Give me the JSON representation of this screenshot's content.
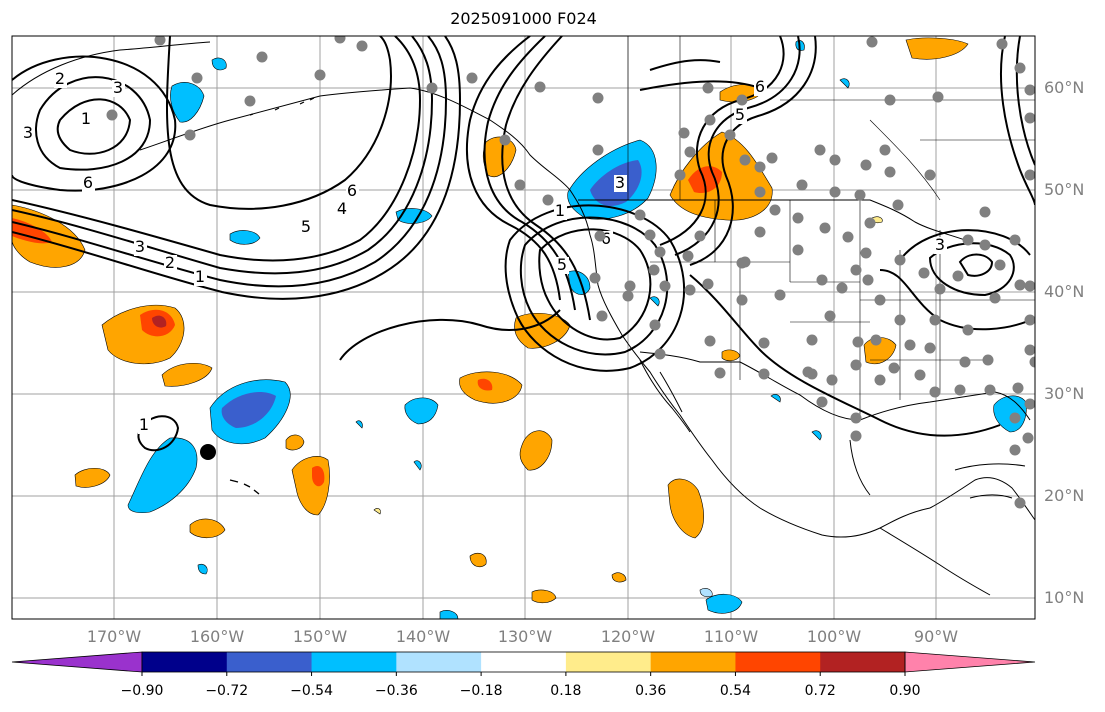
{
  "title": "2025091000 F024",
  "lat_labels": [
    "60°N",
    "50°N",
    "40°N",
    "30°N",
    "20°N",
    "10°N"
  ],
  "lon_labels": [
    "170°W",
    "160°W",
    "150°W",
    "140°W",
    "130°W",
    "120°W",
    "110°W",
    "100°W",
    "90°W"
  ],
  "colorbar": {
    "tick_labels": [
      "−0.90",
      "−0.72",
      "−0.54",
      "−0.36",
      "−0.18",
      "0.18",
      "0.36",
      "0.54",
      "0.72",
      "0.90"
    ],
    "colors": [
      "#9a32cd",
      "#00008b",
      "#3a5fcd",
      "#00bfff",
      "#b0e2ff",
      "#ffffff",
      "#ffec8b",
      "#ffa500",
      "#ff4500",
      "#b22222",
      "#ff82ab"
    ]
  },
  "contour_labels": [
    "2",
    "3",
    "1",
    "3",
    "6",
    "3",
    "2",
    "1",
    "6",
    "5",
    "4",
    "5",
    "6",
    "3",
    "6",
    "5",
    "3",
    "1",
    "1"
  ],
  "colors": {
    "grid": "#a0a0a0",
    "coast": "#000000",
    "station_dot": "#808080",
    "marker": "#000000"
  }
}
